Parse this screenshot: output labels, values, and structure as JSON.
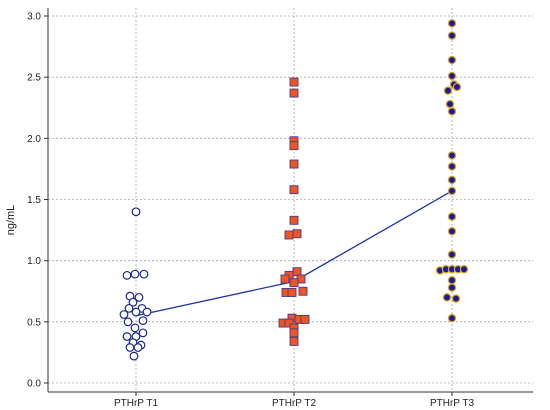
{
  "chart_data": {
    "type": "scatter",
    "ylabel": "ng/mL",
    "ylim": [
      0,
      3.0
    ],
    "y_ticks": [
      "0.0",
      "0.5",
      "1.0",
      "1.5",
      "2.0",
      "2.5",
      "3.0"
    ],
    "y_tick_values": [
      0,
      0.5,
      1.0,
      1.5,
      2.0,
      2.5,
      3.0
    ],
    "categories": [
      "PTHrP T1",
      "PTHrP T2",
      "PTHrP T3"
    ],
    "grid": true,
    "mean_line": {
      "color": "#2233aa",
      "values": [
        0.55,
        0.83,
        1.57
      ]
    },
    "series": [
      {
        "marker": "open-circle",
        "stroke": "#1a2a8c",
        "fill": "#ffffff",
        "points": [
          {
            "o": 0,
            "y": 1.4
          },
          {
            "o": -9,
            "y": 0.88
          },
          {
            "o": -1,
            "y": 0.89
          },
          {
            "o": 8,
            "y": 0.89
          },
          {
            "o": -6,
            "y": 0.71
          },
          {
            "o": 3,
            "y": 0.7
          },
          {
            "o": -3,
            "y": 0.66
          },
          {
            "o": -7,
            "y": 0.61
          },
          {
            "o": 6,
            "y": 0.61
          },
          {
            "o": -12,
            "y": 0.56
          },
          {
            "o": 0,
            "y": 0.58
          },
          {
            "o": 11,
            "y": 0.58
          },
          {
            "o": -8,
            "y": 0.5
          },
          {
            "o": 7,
            "y": 0.51
          },
          {
            "o": -1,
            "y": 0.45
          },
          {
            "o": 7,
            "y": 0.41
          },
          {
            "o": -9,
            "y": 0.38
          },
          {
            "o": 0,
            "y": 0.38
          },
          {
            "o": -3,
            "y": 0.33
          },
          {
            "o": 5,
            "y": 0.31
          },
          {
            "o": -6,
            "y": 0.29
          },
          {
            "o": 2,
            "y": 0.29
          },
          {
            "o": -2,
            "y": 0.22
          }
        ]
      },
      {
        "marker": "square",
        "stroke": "#4a3a8a",
        "fill": "#ee5522",
        "points": [
          {
            "o": 0,
            "y": 2.46
          },
          {
            "o": 0,
            "y": 2.37
          },
          {
            "o": 0,
            "y": 1.98
          },
          {
            "o": 0,
            "y": 1.94
          },
          {
            "o": 0,
            "y": 1.79
          },
          {
            "o": 0,
            "y": 1.58
          },
          {
            "o": 0,
            "y": 1.33
          },
          {
            "o": 3,
            "y": 1.22
          },
          {
            "o": -5,
            "y": 1.21
          },
          {
            "o": 3,
            "y": 0.91
          },
          {
            "o": -5,
            "y": 0.88
          },
          {
            "o": -9,
            "y": 0.85
          },
          {
            "o": 7,
            "y": 0.85
          },
          {
            "o": 0,
            "y": 0.82
          },
          {
            "o": 9,
            "y": 0.75
          },
          {
            "o": -8,
            "y": 0.74
          },
          {
            "o": -2,
            "y": 0.74
          },
          {
            "o": -2,
            "y": 0.53
          },
          {
            "o": 5,
            "y": 0.52
          },
          {
            "o": 11,
            "y": 0.52
          },
          {
            "o": -11,
            "y": 0.49
          },
          {
            "o": -5,
            "y": 0.49
          },
          {
            "o": 0,
            "y": 0.45
          },
          {
            "o": 0,
            "y": 0.41
          },
          {
            "o": 0,
            "y": 0.34
          }
        ]
      },
      {
        "marker": "filled-circle",
        "stroke": "#d9a520",
        "fill": "#1a1a9c",
        "points": [
          {
            "o": 0,
            "y": 2.94
          },
          {
            "o": 0,
            "y": 2.84
          },
          {
            "o": 0,
            "y": 2.64
          },
          {
            "o": 0,
            "y": 2.51
          },
          {
            "o": 2,
            "y": 2.44
          },
          {
            "o": -4,
            "y": 2.39
          },
          {
            "o": 5,
            "y": 2.42
          },
          {
            "o": -2,
            "y": 2.28
          },
          {
            "o": 0,
            "y": 2.22
          },
          {
            "o": 0,
            "y": 1.86
          },
          {
            "o": 0,
            "y": 1.77
          },
          {
            "o": 0,
            "y": 1.66
          },
          {
            "o": 0,
            "y": 1.57
          },
          {
            "o": 0,
            "y": 1.36
          },
          {
            "o": 0,
            "y": 1.24
          },
          {
            "o": 0,
            "y": 1.05
          },
          {
            "o": -12,
            "y": 0.92
          },
          {
            "o": -6,
            "y": 0.93
          },
          {
            "o": 0,
            "y": 0.93
          },
          {
            "o": 6,
            "y": 0.93
          },
          {
            "o": 12,
            "y": 0.93
          },
          {
            "o": 0,
            "y": 0.84
          },
          {
            "o": 0,
            "y": 0.78
          },
          {
            "o": -5,
            "y": 0.7
          },
          {
            "o": 4,
            "y": 0.69
          },
          {
            "o": 0,
            "y": 0.53
          }
        ]
      }
    ]
  }
}
